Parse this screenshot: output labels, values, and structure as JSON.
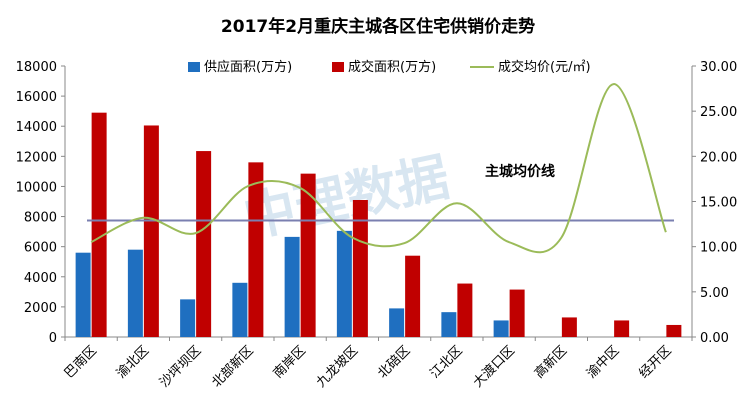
{
  "chart_data": {
    "type": "bar",
    "title": "2017年2月重庆主城各区住宅供销价走势",
    "categories": [
      "巴南区",
      "渝北区",
      "沙坪坝区",
      "北部新区",
      "南岸区",
      "九龙坡区",
      "北碚区",
      "江北区",
      "大渡口区",
      "高新区",
      "渝中区",
      "经开区"
    ],
    "series": [
      {
        "name": "供应面积(万方)",
        "type": "bar",
        "axis": "left",
        "color": "#1f6fc0",
        "values": [
          5600,
          5800,
          2500,
          3600,
          6650,
          7050,
          1900,
          1650,
          1100,
          0,
          0,
          0
        ]
      },
      {
        "name": "成交面积(万方)",
        "type": "bar",
        "axis": "left",
        "color": "#c00000",
        "values": [
          14900,
          14050,
          12350,
          11600,
          10850,
          9100,
          5400,
          3550,
          3150,
          1300,
          1100,
          800
        ]
      },
      {
        "name": "成交均价(元/㎡)",
        "type": "line",
        "axis": "right",
        "color": "#9bbb59",
        "values": [
          10.5,
          13.2,
          11.5,
          16.7,
          16.5,
          11.0,
          10.4,
          14.8,
          10.5,
          11.0,
          28.0,
          11.6
        ]
      }
    ],
    "reference_line": {
      "label": "主城均价线",
      "value": 12.9,
      "axis": "right",
      "color": "#7a7fb0"
    },
    "y_left": {
      "min": 0,
      "max": 18000,
      "ticks": [
        "0",
        "2000",
        "4000",
        "6000",
        "8000",
        "10000",
        "12000",
        "14000",
        "16000",
        "18000"
      ]
    },
    "y_right": {
      "min": 0,
      "max": 30,
      "ticks": [
        "0.00",
        "5.00",
        "10.00",
        "15.00",
        "20.00",
        "25.00",
        "30.00"
      ]
    },
    "legend_position": "top-center",
    "grid": false,
    "watermark": "中理数据"
  }
}
